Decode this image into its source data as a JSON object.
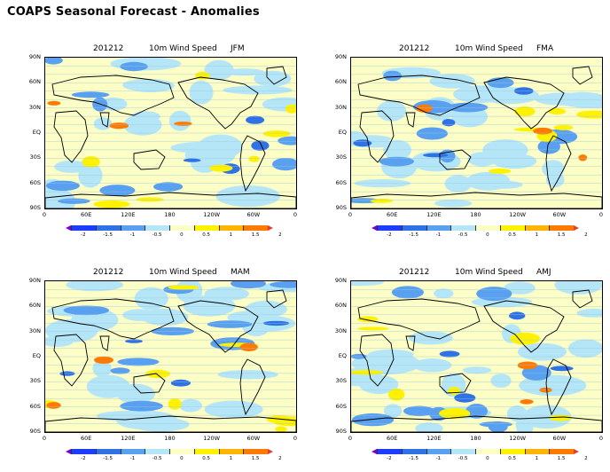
{
  "title": "COAPS Seasonal Forecast - Anomalies",
  "panels": [
    {
      "date": "201212",
      "variable": "10m Wind Speed",
      "season": "JFM"
    },
    {
      "date": "201212",
      "variable": "10m Wind Speed",
      "season": "FMA"
    },
    {
      "date": "201212",
      "variable": "10m Wind Speed",
      "season": "MAM"
    },
    {
      "date": "201212",
      "variable": "10m Wind Speed",
      "season": "AMJ"
    }
  ],
  "lat_labels": [
    "90N",
    "60N",
    "30N",
    "EQ",
    "30S",
    "60S",
    "90S"
  ],
  "lon_labels": [
    "0",
    "60E",
    "120E",
    "180",
    "120W",
    "60W",
    "0"
  ],
  "colorbar": {
    "ticks": [
      "-2",
      "-1.5",
      "-1",
      "-0.5",
      "0",
      "0.5",
      "1",
      "1.5",
      "2"
    ],
    "colors": [
      "#7a00d6",
      "#1e3cff",
      "#2f72e6",
      "#5aa0f0",
      "#b4e6f8",
      "#fdfdc6",
      "#fff200",
      "#ffb400",
      "#ff7a00",
      "#e63c2e"
    ]
  }
}
